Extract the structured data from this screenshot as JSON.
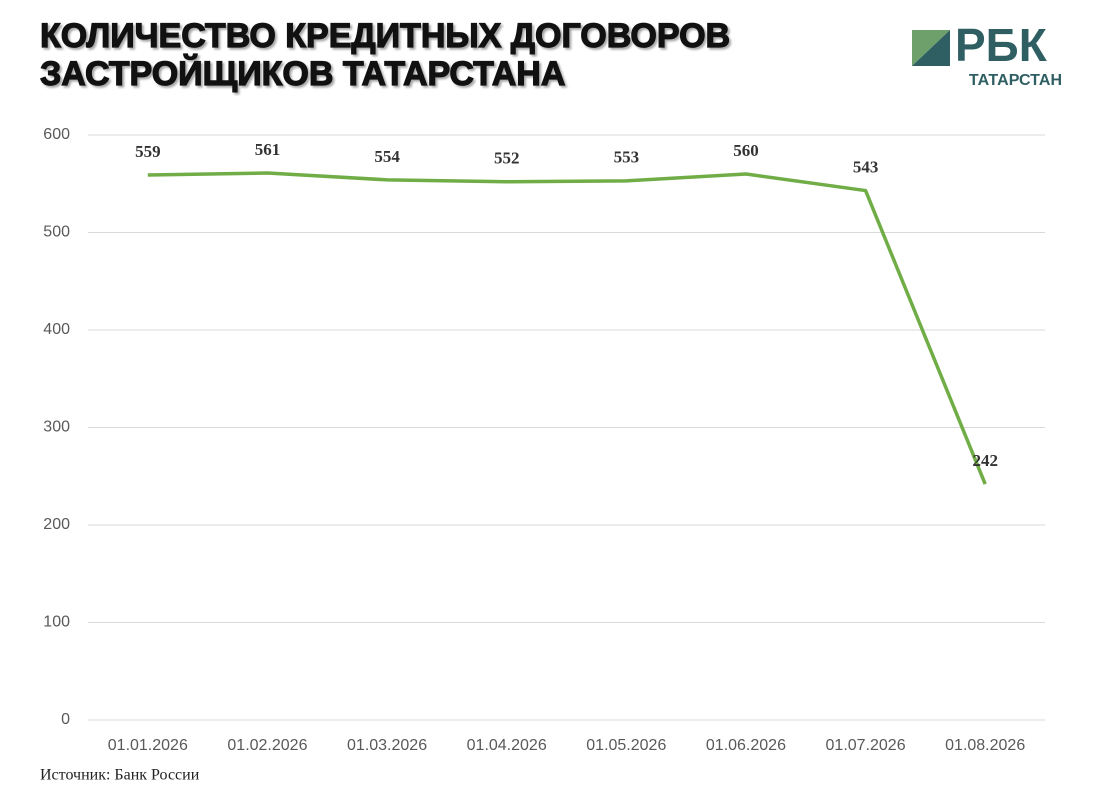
{
  "chart_data": {
    "type": "line",
    "title": [
      "КОЛИЧЕСТВО КРЕДИТНЫХ ДОГОВОРОВ",
      "ЗАСТРОЙЩИКОВ ТАТАРСТАНА"
    ],
    "logo": {
      "name": "РБК",
      "region": "ТАТАРСТАН"
    },
    "source": "Источник: Банк России",
    "categories": [
      "01.01.2026",
      "01.02.2026",
      "01.03.2026",
      "01.04.2026",
      "01.05.2026",
      "01.06.2026",
      "01.07.2026",
      "01.08.2026"
    ],
    "values": [
      559,
      561,
      554,
      552,
      553,
      560,
      543,
      242
    ],
    "color": "#70ad47",
    "ylim": [
      0,
      600
    ],
    "yticks": [
      0,
      100,
      200,
      300,
      400,
      500,
      600
    ],
    "grid": true
  }
}
